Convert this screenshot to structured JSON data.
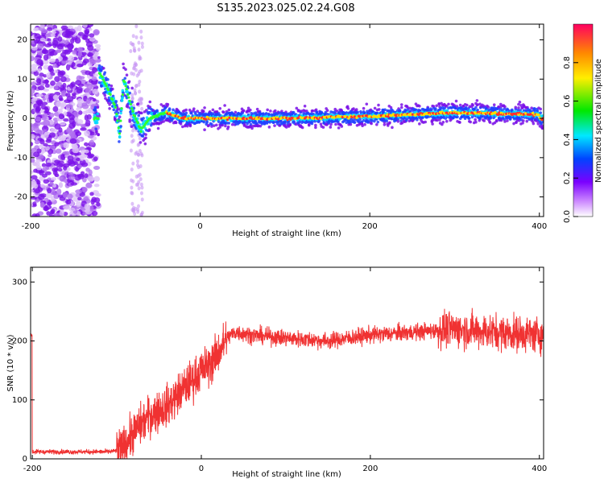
{
  "title": "S135.2023.025.02.24.G08",
  "chart_data": [
    {
      "type": "heatmap",
      "xlabel": "Height of straight line (km)",
      "ylabel": "Frequency (Hz)",
      "xlim": [
        -200,
        405
      ],
      "ylim": [
        -25,
        24
      ],
      "xticks": [
        "-200",
        "0",
        "200",
        "400"
      ],
      "yticks": [
        "-20",
        "-10",
        "0",
        "10",
        "20"
      ],
      "colorbar": {
        "label": "Normalized spectral amplitude",
        "range": [
          0,
          1
        ],
        "ticks": [
          "0.0",
          "0.2",
          "0.4",
          "0.6",
          "0.8"
        ]
      },
      "dominant_frequency": [
        {
          "x": -120,
          "y": 12
        },
        {
          "x": -110,
          "y": 8
        },
        {
          "x": -100,
          "y": 3
        },
        {
          "x": -95,
          "y": -4
        },
        {
          "x": -90,
          "y": 10
        },
        {
          "x": -80,
          "y": 2
        },
        {
          "x": -70,
          "y": -3
        },
        {
          "x": -60,
          "y": 0
        },
        {
          "x": -40,
          "y": 1.5
        },
        {
          "x": -20,
          "y": 0
        },
        {
          "x": 100,
          "y": 0
        },
        {
          "x": 200,
          "y": 0.5
        },
        {
          "x": 300,
          "y": 1.5
        },
        {
          "x": 400,
          "y": 1
        }
      ]
    },
    {
      "type": "line",
      "xlabel": "Height of straight line (km)",
      "ylabel": "SNR (10 * v/v)",
      "xlim": [
        -202,
        405
      ],
      "ylim": [
        0,
        325
      ],
      "xticks": [
        "-200",
        "0",
        "200",
        "400"
      ],
      "yticks": [
        "0",
        "100",
        "200",
        "300"
      ],
      "color": "#f03232",
      "series": [
        {
          "x": [
            -200,
            -150,
            -110,
            -95,
            -80,
            -60,
            -40,
            -20,
            0,
            10,
            20,
            30,
            40,
            60,
            100,
            150,
            200,
            250,
            300,
            350,
            405
          ],
          "y": [
            12,
            12,
            12,
            15,
            45,
            75,
            90,
            120,
            150,
            160,
            180,
            205,
            215,
            210,
            205,
            200,
            210,
            215,
            220,
            215,
            210
          ]
        }
      ]
    }
  ]
}
